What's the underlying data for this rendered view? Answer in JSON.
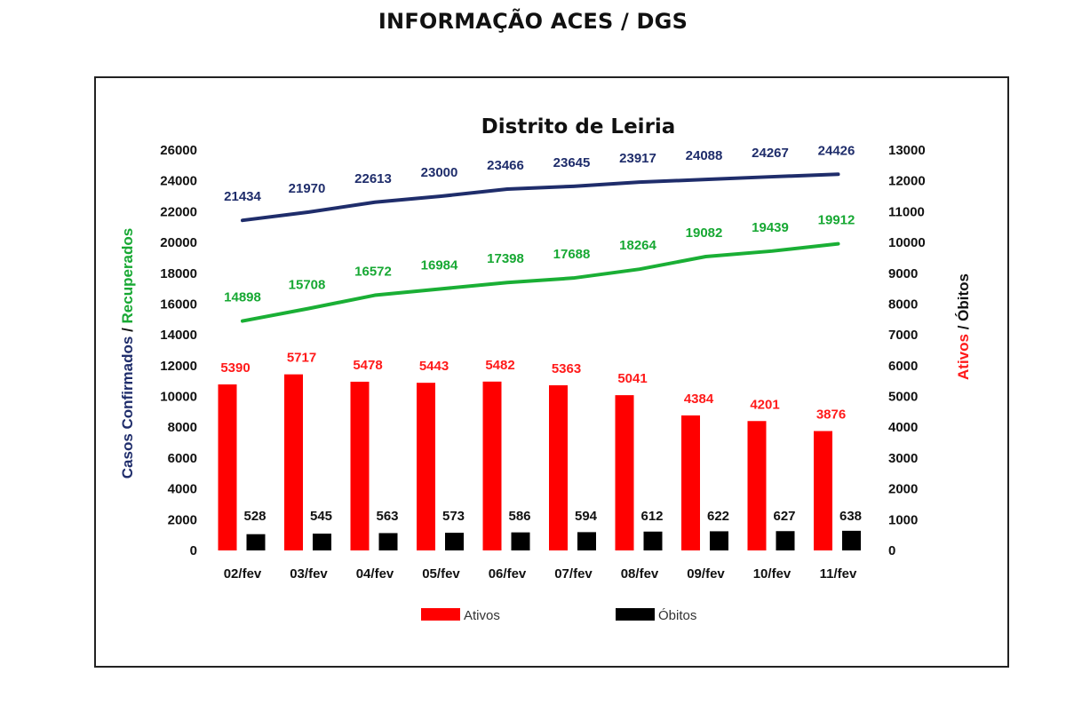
{
  "header": {
    "title": "INFORMAÇÃO ACES / DGS"
  },
  "chart_data": {
    "type": "bar",
    "title": "Distrito de Leiria",
    "categories": [
      "02/fev",
      "03/fev",
      "04/fev",
      "05/fev",
      "06/fev",
      "07/fev",
      "08/fev",
      "09/fev",
      "10/fev",
      "11/fev"
    ],
    "y_left": {
      "label_parts": [
        {
          "text": "Casos Confirmados",
          "color": "#1f2d6b"
        },
        {
          "text": " / ",
          "color": "#111111"
        },
        {
          "text": "Recuperados",
          "color": "#17a833"
        }
      ],
      "ylim": [
        0,
        26000
      ],
      "ticks": [
        0,
        2000,
        4000,
        6000,
        8000,
        10000,
        12000,
        14000,
        16000,
        18000,
        20000,
        22000,
        24000,
        26000
      ]
    },
    "y_right": {
      "label_parts": [
        {
          "text": "Ativos",
          "color": "#ff1a1a"
        },
        {
          "text": " / ",
          "color": "#111111"
        },
        {
          "text": "Óbitos",
          "color": "#111111"
        }
      ],
      "ylim": [
        0,
        13000
      ],
      "ticks": [
        0,
        1000,
        2000,
        3000,
        4000,
        5000,
        6000,
        7000,
        8000,
        9000,
        10000,
        11000,
        12000,
        13000
      ]
    },
    "series": [
      {
        "name": "Casos Confirmados",
        "type": "line",
        "axis": "left",
        "color": "#1f2d6b",
        "values": [
          21434,
          21970,
          22613,
          23000,
          23466,
          23645,
          23917,
          24088,
          24267,
          24426
        ]
      },
      {
        "name": "Recuperados",
        "type": "line",
        "axis": "left",
        "color": "#1aaf35",
        "values": [
          14898,
          15708,
          16572,
          16984,
          17398,
          17688,
          18264,
          19082,
          19439,
          19912
        ]
      },
      {
        "name": "Ativos",
        "type": "bar",
        "axis": "right",
        "color": "#ff0000",
        "values": [
          5390,
          5717,
          5478,
          5443,
          5482,
          5363,
          5041,
          4384,
          4201,
          3876
        ]
      },
      {
        "name": "Óbitos",
        "type": "bar",
        "axis": "right",
        "color": "#000000",
        "values": [
          528,
          545,
          563,
          573,
          586,
          594,
          612,
          622,
          627,
          638
        ]
      }
    ],
    "legend": {
      "position": "bottom",
      "entries": [
        "Ativos",
        "Óbitos"
      ]
    },
    "grid": false
  }
}
